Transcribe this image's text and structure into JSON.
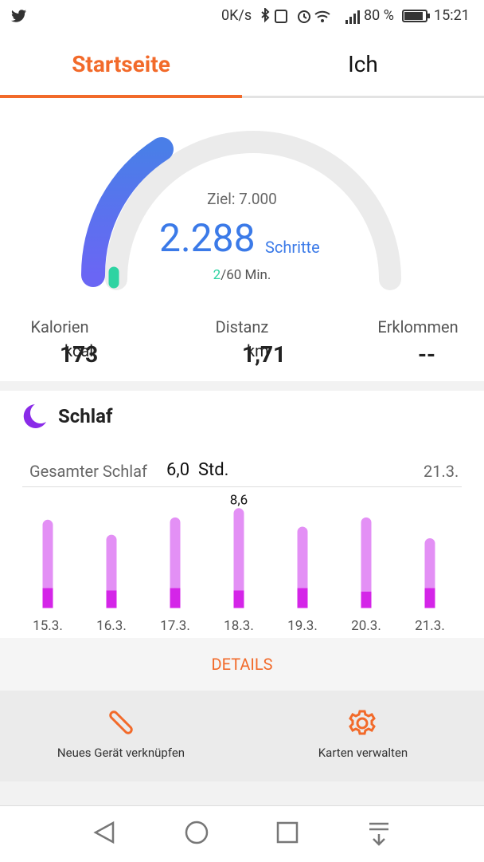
{
  "status_bar": {
    "speed": "0K/s",
    "battery": "80 %",
    "time": "15:21"
  },
  "tabs": [
    "Startseite",
    "Ich"
  ],
  "steps": {
    "goal": "Ziel: 7.000",
    "count": "2.288",
    "unit": "Schritte",
    "active_done": "2",
    "active_goal": "/60 Min."
  },
  "stats": [
    {
      "label": "Kalorien",
      "value": "173",
      "unit": "kcal"
    },
    {
      "label": "Distanz",
      "value": "1,71",
      "unit": "km"
    },
    {
      "label": "Erklommen",
      "value": "--",
      "unit": ""
    }
  ],
  "sleep": {
    "title": "Schlaf",
    "total_label": "Gesamter Schlaf",
    "total_value": "6,0",
    "total_unit": "Std.",
    "date": "21.3."
  },
  "chart_data": {
    "type": "bar",
    "stacked": true,
    "categories": [
      "15.3.",
      "16.3.",
      "17.3.",
      "18.3.",
      "19.3.",
      "20.3.",
      "21.3."
    ],
    "series": [
      {
        "color": "#d425e8",
        "values": [
          1.7,
          1.5,
          1.7,
          1.5,
          1.7,
          1.4,
          1.7
        ]
      },
      {
        "color": "#e390f5",
        "values": [
          5.9,
          4.8,
          6.1,
          7.1,
          5.3,
          6.4,
          4.3
        ]
      }
    ],
    "peak_label": "8,6",
    "ylim": [
      0,
      10
    ]
  },
  "details": "DETAILS",
  "shortcuts": [
    "Neues Gerät verknüpfen",
    "Karten verwalten"
  ]
}
